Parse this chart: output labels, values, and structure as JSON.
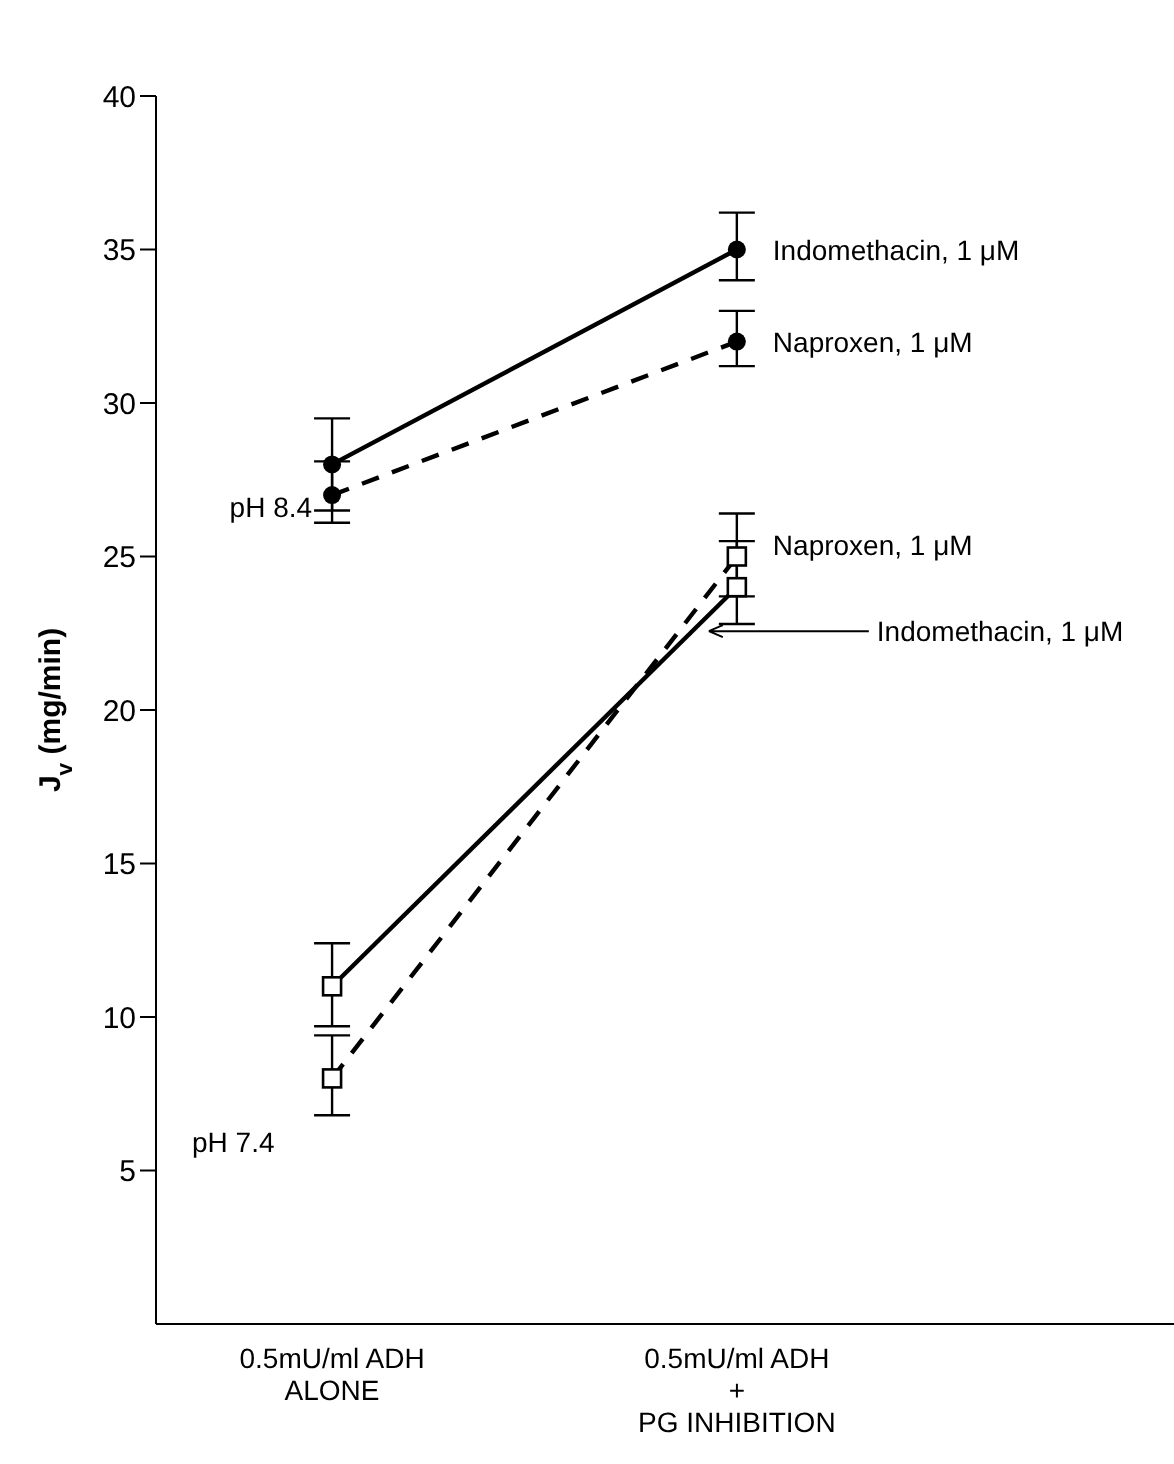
{
  "chart_data": {
    "type": "line",
    "ylabel": "J$_{v}$ (mg/min)",
    "categories": [
      "0.5mU/ml ADH\nALONE",
      "0.5mU/ml ADH\n+\nPG INHIBITION"
    ],
    "ylim": [
      0,
      40
    ],
    "yticks": [
      5,
      10,
      15,
      20,
      25,
      30,
      35,
      40
    ],
    "grid": false,
    "legend": false,
    "series": [
      {
        "name": "Indomethacin, 1 μM",
        "color": "#000000",
        "values": [
          28,
          35
        ],
        "errors": [
          [
            26.5,
            29.5
          ],
          [
            34,
            36.2
          ]
        ],
        "marker": "circle",
        "line_style": "solid"
      },
      {
        "name": "Naproxen, 1 μM",
        "color": "#000000",
        "values": [
          27,
          32
        ],
        "errors": [
          [
            26.1,
            28.1
          ],
          [
            31.2,
            33
          ]
        ],
        "marker": "circle",
        "line_style": "dashed"
      },
      {
        "name": "Indomethacin, 1 μM",
        "color": "#000000",
        "values": [
          11,
          24
        ],
        "errors": [
          [
            9.7,
            12.4
          ],
          [
            22.8,
            25.5
          ]
        ],
        "marker": "square",
        "line_style": "solid"
      },
      {
        "name": "Naproxen, 1 μM",
        "color": "#000000",
        "values": [
          8,
          25
        ],
        "errors": [
          [
            6.8,
            9.4
          ],
          [
            23.7,
            26.4
          ]
        ],
        "marker": "square",
        "line_style": "dashed"
      }
    ],
    "annotations": [
      {
        "text": "pH 8.4",
        "x": "0.5mU/ml ADH\nALONE",
        "y": 26.6
      },
      "pH 7.4"
    ]
  }
}
